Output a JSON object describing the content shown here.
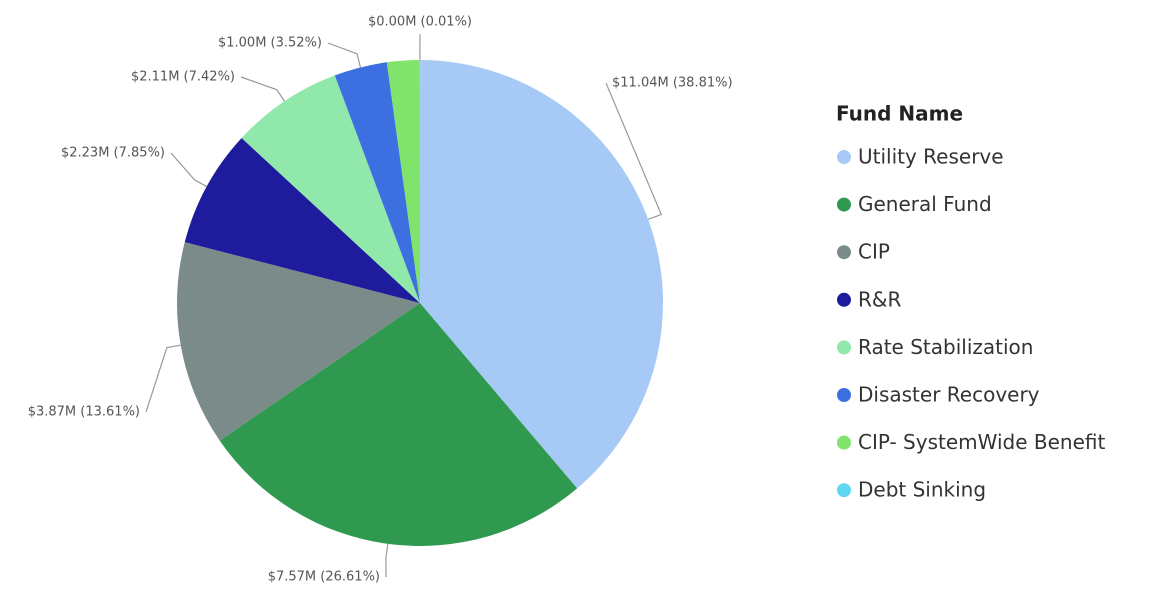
{
  "chart_data": {
    "type": "pie",
    "legend_title": "Fund Name",
    "categories": [
      "Utility Reserve",
      "General Fund",
      "CIP",
      "R&R",
      "Rate Stabilization",
      "Disaster Recovery",
      "CIP- SystemWide Benefit",
      "Debt Sinking"
    ],
    "values": [
      38.81,
      26.61,
      13.61,
      7.85,
      7.42,
      3.52,
      2.17,
      0.01
    ],
    "value_labels": [
      "$11.04M (38.81%)",
      "$7.57M (26.61%)",
      "$3.87M (13.61%)",
      "$2.23M (7.85%)",
      "$2.11M (7.42%)",
      "$1.00M (3.52%)",
      null,
      "$0.00M (0.01%)"
    ],
    "colors": [
      "#a6c9f5",
      "#2f9a4f",
      "#7b8b8a",
      "#1e1b9c",
      "#90e8aa",
      "#3c70e0",
      "#80e36b",
      "#5fd7f0"
    ],
    "legend": "right"
  }
}
